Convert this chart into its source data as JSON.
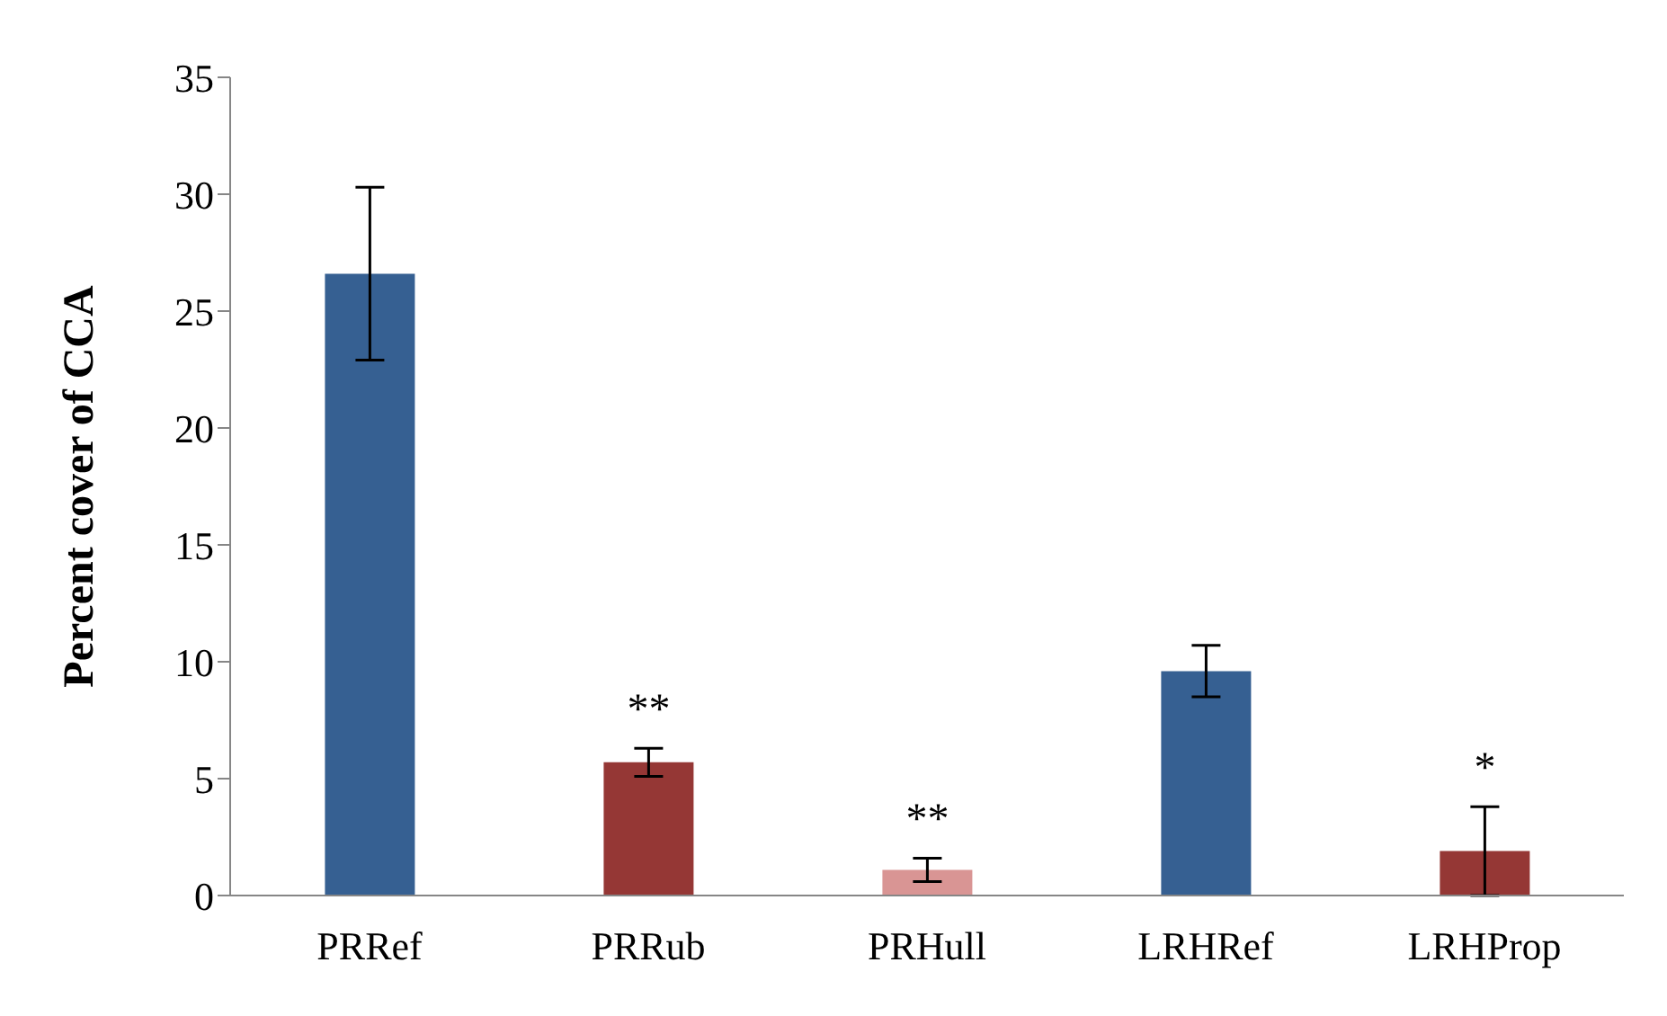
{
  "chart_data": {
    "type": "bar",
    "ylabel": "Percent cover of CCA",
    "categories": [
      "PRRef",
      "PRRub",
      "PRHull",
      "LRHRef",
      "LRHProp"
    ],
    "values": [
      26.6,
      5.7,
      1.1,
      9.6,
      1.9
    ],
    "errors": [
      3.7,
      0.6,
      0.5,
      1.1,
      1.9
    ],
    "colors": [
      "#366092",
      "#953735",
      "#d99594",
      "#366092",
      "#953735"
    ],
    "value_labels": [
      null,
      "**",
      "**",
      null,
      "*"
    ],
    "ylim": [
      0,
      35
    ],
    "yticks": [
      0,
      5,
      10,
      15,
      20,
      25,
      30,
      35
    ],
    "grid": false,
    "legend": false
  }
}
